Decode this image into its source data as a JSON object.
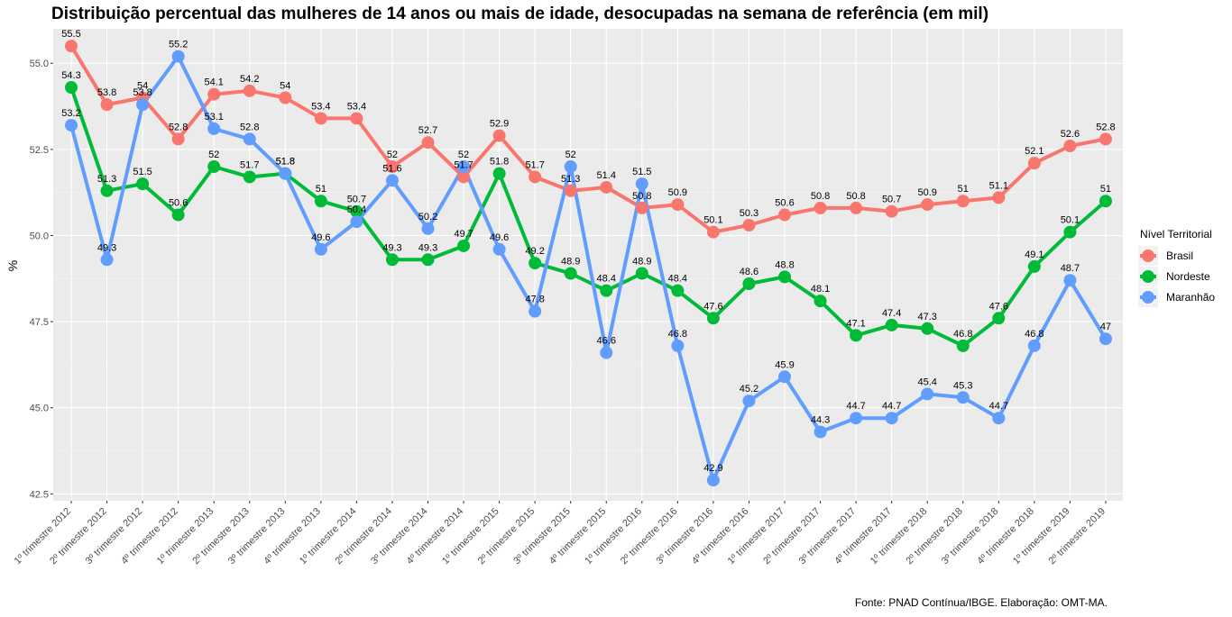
{
  "caption": "Fonte: PNAD Contínua/IBGE. Elaboração: OMT-MA.",
  "chart_data": {
    "type": "line",
    "title": "Distribuição percentual das mulheres de 14 anos ou mais de idade, desocupadas na semana de referência (em mil)",
    "xlabel": "",
    "ylabel": "%",
    "ylim": [
      42.3,
      56.0
    ],
    "yticks": [
      "42.5",
      "45.0",
      "47.5",
      "50.0",
      "52.5",
      "55.0"
    ],
    "grid": true,
    "legend_title": "Nível Territorial",
    "legend_position": "right",
    "categories": [
      "1º trimestre 2012",
      "2º trimestre 2012",
      "3º trimestre 2012",
      "4º trimestre 2012",
      "1º trimestre 2013",
      "2º trimestre 2013",
      "3º trimestre 2013",
      "4º trimestre 2013",
      "1º trimestre 2014",
      "2º trimestre 2014",
      "3º trimestre 2014",
      "4º trimestre 2014",
      "1º trimestre 2015",
      "2º trimestre 2015",
      "3º trimestre 2015",
      "4º trimestre 2015",
      "1º trimestre 2016",
      "2º trimestre 2016",
      "3º trimestre 2016",
      "4º trimestre 2016",
      "1º trimestre 2017",
      "2º trimestre 2017",
      "3º trimestre 2017",
      "4º trimestre 2017",
      "1º trimestre 2018",
      "2º trimestre 2018",
      "3º trimestre 2018",
      "4º trimestre 2018",
      "1º trimestre 2019",
      "2º trimestre 2019"
    ],
    "series": [
      {
        "name": "Brasil",
        "color": "#F8766D",
        "values": [
          55.5,
          53.8,
          54,
          52.8,
          54.1,
          54.2,
          54,
          53.4,
          53.4,
          52,
          52.7,
          51.7,
          52.9,
          51.7,
          51.3,
          51.4,
          50.8,
          50.9,
          50.1,
          50.3,
          50.6,
          50.8,
          50.8,
          50.7,
          50.9,
          51,
          51.1,
          52.1,
          52.6,
          52.8
        ]
      },
      {
        "name": "Nordeste",
        "color": "#00BA38",
        "values": [
          54.3,
          51.3,
          51.5,
          50.6,
          52,
          51.7,
          51.8,
          51,
          50.7,
          49.3,
          49.3,
          49.7,
          51.8,
          49.2,
          48.9,
          48.4,
          48.9,
          48.4,
          47.6,
          48.6,
          48.8,
          48.1,
          47.1,
          47.4,
          47.3,
          46.8,
          47.6,
          49.1,
          50.1,
          51
        ]
      },
      {
        "name": "Maranhão",
        "color": "#619CFF",
        "values": [
          53.2,
          49.3,
          53.8,
          55.2,
          53.1,
          52.8,
          51.8,
          49.6,
          50.4,
          51.6,
          50.2,
          52,
          49.6,
          47.8,
          52,
          46.6,
          51.5,
          46.8,
          42.9,
          45.2,
          45.9,
          44.3,
          44.7,
          44.7,
          45.4,
          45.3,
          44.7,
          46.8,
          48.7,
          47
        ]
      }
    ]
  }
}
